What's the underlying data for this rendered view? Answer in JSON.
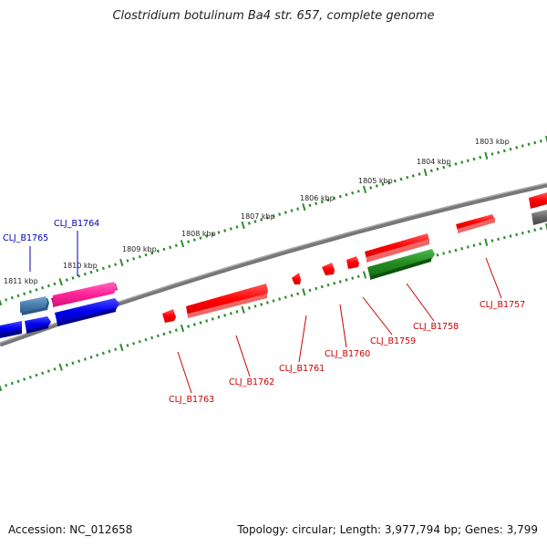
{
  "title": "Clostridium botulinum Ba4 str. 657, complete genome",
  "footer": {
    "accession_prefix": "Accession: ",
    "accession": "NC_012658",
    "topology_text": "Topology: circular; Length: 3,977,794 bp; Genes: 3,799"
  },
  "colors": {
    "backbone": "#777777",
    "tick": "#2e8b2e",
    "red_gene": "#ff0000",
    "green_gene": "#229922",
    "blue_gene": "#0000ee",
    "magenta_gene": "#ff2299",
    "steel_gene": "#4a7fb0",
    "gray_gene": "#666666",
    "label_red": "#cc0000",
    "label_blue": "#0000bb"
  },
  "scale": {
    "unit": "kbp",
    "labels": [
      "1803 kbp",
      "1804 kbp",
      "1805 kbp",
      "1806 kbp",
      "1807 kbp",
      "1808 kbp",
      "1809 kbp",
      "1810 kbp",
      "1811 kbp"
    ]
  },
  "genes": [
    {
      "label": "CLJ_B1757",
      "strand": "forward",
      "color": "red",
      "labeled": true
    },
    {
      "label": "CLJ_B1758",
      "strand": "forward",
      "color": "red",
      "labeled": true
    },
    {
      "label": "CLJ_B1759",
      "strand": "forward",
      "color": "red",
      "labeled": true
    },
    {
      "label": "CLJ_B1760",
      "strand": "forward",
      "color": "red",
      "labeled": true
    },
    {
      "label": "CLJ_B1761",
      "strand": "forward",
      "color": "red",
      "labeled": true
    },
    {
      "label": "CLJ_B1762",
      "strand": "forward",
      "color": "red",
      "labeled": true
    },
    {
      "label": "CLJ_B1763",
      "strand": "forward",
      "color": "red",
      "labeled": true
    },
    {
      "label": "CLJ_B1764",
      "strand": "reverse",
      "color": "magenta",
      "labeled": true
    },
    {
      "label": "CLJ_B1765",
      "strand": "reverse",
      "color": "steel",
      "labeled": true
    },
    {
      "label": "",
      "strand": "reverse",
      "color": "green",
      "labeled": false
    },
    {
      "label": "",
      "strand": "reverse",
      "color": "blue",
      "labeled": false
    },
    {
      "label": "",
      "strand": "reverse",
      "color": "blue",
      "labeled": false
    },
    {
      "label": "",
      "strand": "reverse",
      "color": "blue",
      "labeled": false
    },
    {
      "label": "",
      "strand": "forward",
      "color": "red",
      "labeled": false
    },
    {
      "label": "",
      "strand": "reverse",
      "color": "gray",
      "labeled": false
    }
  ]
}
